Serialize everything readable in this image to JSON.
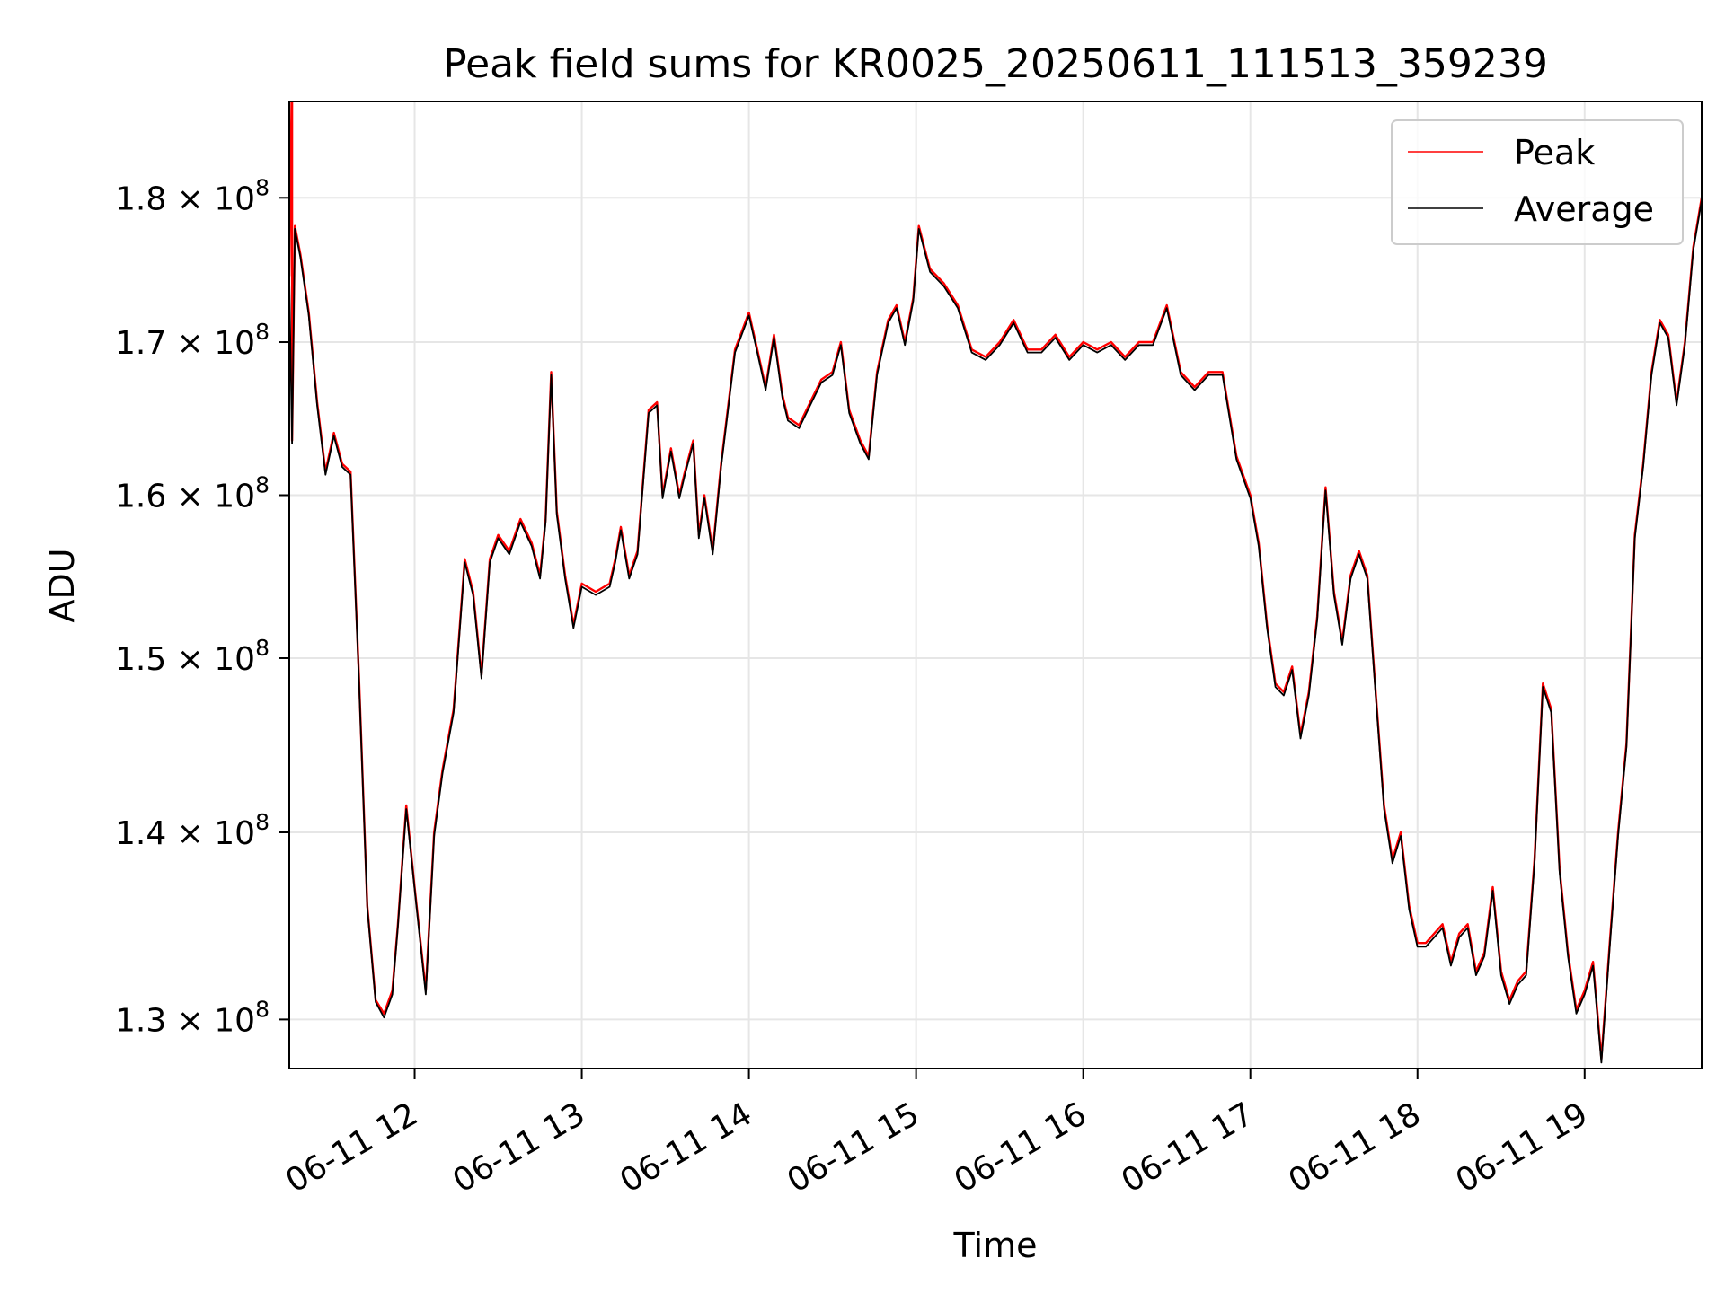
{
  "chart_data": {
    "type": "line",
    "title": "Peak field sums for KR0025_20250611_111513_359239",
    "xlabel": "Time",
    "ylabel": "ADU",
    "yscale": "log",
    "grid": true,
    "legend_position": "upper right",
    "x_ticks": [
      {
        "time": "2025-06-11 12:00",
        "label": "06-11 12"
      },
      {
        "time": "2025-06-11 13:00",
        "label": "06-11 13"
      },
      {
        "time": "2025-06-11 14:00",
        "label": "06-11 14"
      },
      {
        "time": "2025-06-11 15:00",
        "label": "06-11 15"
      },
      {
        "time": "2025-06-11 16:00",
        "label": "06-11 16"
      },
      {
        "time": "2025-06-11 17:00",
        "label": "06-11 17"
      },
      {
        "time": "2025-06-11 18:00",
        "label": "06-11 18"
      },
      {
        "time": "2025-06-11 19:00",
        "label": "06-11 19"
      }
    ],
    "y_ticks": [
      {
        "value": 130000000,
        "mantissa": "1.3"
      },
      {
        "value": 140000000,
        "mantissa": "1.4"
      },
      {
        "value": 150000000,
        "mantissa": "1.5"
      },
      {
        "value": 160000000,
        "mantissa": "1.6"
      },
      {
        "value": 170000000,
        "mantissa": "1.7"
      },
      {
        "value": 180000000,
        "mantissa": "1.8"
      }
    ],
    "y_tick_times": "×",
    "y_tick_base": "10",
    "y_tick_exponent": "8",
    "xlim": [
      "2025-06-11 11:15",
      "2025-06-11 19:42"
    ],
    "ylim": [
      127500000,
      187000000
    ],
    "series": [
      {
        "name": "Peak",
        "color": "#ff0000",
        "spike": {
          "time": "2025-06-11 11:16",
          "value": 190000000
        },
        "x": [
          "2025-06-11 11:15",
          "2025-06-11 11:16",
          "2025-06-11 11:17",
          "2025-06-11 11:19",
          "2025-06-11 11:22",
          "2025-06-11 11:25",
          "2025-06-11 11:28",
          "2025-06-11 11:31",
          "2025-06-11 11:34",
          "2025-06-11 11:37",
          "2025-06-11 11:40",
          "2025-06-11 11:43",
          "2025-06-11 11:46",
          "2025-06-11 11:49",
          "2025-06-11 11:52",
          "2025-06-11 11:54",
          "2025-06-11 11:57",
          "2025-06-11 12:00",
          "2025-06-11 12:04",
          "2025-06-11 12:07",
          "2025-06-11 12:10",
          "2025-06-11 12:14",
          "2025-06-11 12:18",
          "2025-06-11 12:21",
          "2025-06-11 12:24",
          "2025-06-11 12:27",
          "2025-06-11 12:30",
          "2025-06-11 12:34",
          "2025-06-11 12:38",
          "2025-06-11 12:42",
          "2025-06-11 12:45",
          "2025-06-11 12:47",
          "2025-06-11 12:49",
          "2025-06-11 12:51",
          "2025-06-11 12:54",
          "2025-06-11 12:57",
          "2025-06-11 13:00",
          "2025-06-11 13:05",
          "2025-06-11 13:10",
          "2025-06-11 13:12",
          "2025-06-11 13:14",
          "2025-06-11 13:17",
          "2025-06-11 13:20",
          "2025-06-11 13:24",
          "2025-06-11 13:27",
          "2025-06-11 13:29",
          "2025-06-11 13:32",
          "2025-06-11 13:35",
          "2025-06-11 13:37",
          "2025-06-11 13:40",
          "2025-06-11 13:42",
          "2025-06-11 13:44",
          "2025-06-11 13:47",
          "2025-06-11 13:50",
          "2025-06-11 13:55",
          "2025-06-11 14:00",
          "2025-06-11 14:03",
          "2025-06-11 14:06",
          "2025-06-11 14:09",
          "2025-06-11 14:12",
          "2025-06-11 14:14",
          "2025-06-11 14:18",
          "2025-06-11 14:22",
          "2025-06-11 14:26",
          "2025-06-11 14:30",
          "2025-06-11 14:33",
          "2025-06-11 14:36",
          "2025-06-11 14:40",
          "2025-06-11 14:43",
          "2025-06-11 14:46",
          "2025-06-11 14:50",
          "2025-06-11 14:53",
          "2025-06-11 14:56",
          "2025-06-11 14:59",
          "2025-06-11 15:01",
          "2025-06-11 15:05",
          "2025-06-11 15:10",
          "2025-06-11 15:15",
          "2025-06-11 15:20",
          "2025-06-11 15:25",
          "2025-06-11 15:30",
          "2025-06-11 15:35",
          "2025-06-11 15:40",
          "2025-06-11 15:45",
          "2025-06-11 15:50",
          "2025-06-11 15:55",
          "2025-06-11 16:00",
          "2025-06-11 16:05",
          "2025-06-11 16:10",
          "2025-06-11 16:15",
          "2025-06-11 16:20",
          "2025-06-11 16:25",
          "2025-06-11 16:30",
          "2025-06-11 16:35",
          "2025-06-11 16:40",
          "2025-06-11 16:45",
          "2025-06-11 16:50",
          "2025-06-11 16:55",
          "2025-06-11 17:00",
          "2025-06-11 17:03",
          "2025-06-11 17:06",
          "2025-06-11 17:09",
          "2025-06-11 17:12",
          "2025-06-11 17:15",
          "2025-06-11 17:18",
          "2025-06-11 17:21",
          "2025-06-11 17:24",
          "2025-06-11 17:27",
          "2025-06-11 17:30",
          "2025-06-11 17:33",
          "2025-06-11 17:36",
          "2025-06-11 17:39",
          "2025-06-11 17:42",
          "2025-06-11 17:45",
          "2025-06-11 17:48",
          "2025-06-11 17:51",
          "2025-06-11 17:54",
          "2025-06-11 17:57",
          "2025-06-11 18:00",
          "2025-06-11 18:03",
          "2025-06-11 18:06",
          "2025-06-11 18:09",
          "2025-06-11 18:12",
          "2025-06-11 18:15",
          "2025-06-11 18:18",
          "2025-06-11 18:21",
          "2025-06-11 18:24",
          "2025-06-11 18:27",
          "2025-06-11 18:30",
          "2025-06-11 18:33",
          "2025-06-11 18:36",
          "2025-06-11 18:39",
          "2025-06-11 18:42",
          "2025-06-11 18:45",
          "2025-06-11 18:48",
          "2025-06-11 18:51",
          "2025-06-11 18:54",
          "2025-06-11 18:57",
          "2025-06-11 19:00",
          "2025-06-11 19:03",
          "2025-06-11 19:06",
          "2025-06-11 19:09",
          "2025-06-11 19:12",
          "2025-06-11 19:15",
          "2025-06-11 19:18",
          "2025-06-11 19:21",
          "2025-06-11 19:24",
          "2025-06-11 19:27",
          "2025-06-11 19:30",
          "2025-06-11 19:33",
          "2025-06-11 19:36",
          "2025-06-11 19:39",
          "2025-06-11 19:42"
        ],
        "values": [
          174500000,
          163500000,
          178000000,
          176000000,
          172000000,
          166000000,
          161500000,
          164000000,
          162000000,
          161500000,
          149000000,
          136000000,
          131000000,
          130300000,
          131500000,
          135000000,
          141500000,
          137000000,
          131500000,
          140000000,
          143500000,
          147000000,
          156000000,
          154000000,
          149000000,
          156000000,
          157500000,
          156500000,
          158500000,
          157000000,
          155000000,
          158500000,
          168000000,
          159000000,
          155000000,
          152000000,
          154500000,
          154000000,
          154500000,
          156000000,
          158000000,
          155000000,
          156500000,
          165500000,
          166000000,
          160000000,
          163000000,
          160000000,
          161500000,
          163500000,
          157500000,
          160000000,
          156500000,
          162000000,
          169500000,
          172000000,
          169500000,
          167000000,
          170500000,
          166500000,
          165000000,
          164500000,
          166000000,
          167500000,
          168000000,
          170000000,
          165500000,
          163500000,
          162500000,
          168000000,
          171500000,
          172500000,
          170000000,
          173000000,
          178000000,
          175000000,
          174000000,
          172500000,
          169500000,
          169000000,
          170000000,
          171500000,
          169500000,
          169500000,
          170500000,
          169000000,
          170000000,
          169500000,
          170000000,
          169000000,
          170000000,
          170000000,
          172500000,
          168000000,
          167000000,
          168000000,
          168000000,
          162500000,
          160000000,
          157000000,
          152000000,
          148500000,
          148000000,
          149500000,
          145500000,
          148000000,
          152500000,
          160500000,
          154000000,
          151000000,
          155000000,
          156500000,
          155000000,
          148000000,
          141500000,
          138500000,
          140000000,
          136000000,
          134000000,
          134000000,
          134500000,
          135000000,
          133000000,
          134500000,
          135000000,
          132500000,
          133500000,
          137000000,
          132500000,
          131000000,
          132000000,
          132500000,
          138500000,
          148500000,
          147000000,
          138000000,
          133500000,
          130500000,
          131500000,
          133000000,
          128000000,
          134000000,
          140000000,
          145000000,
          157500000,
          162000000,
          168000000,
          171500000,
          170500000,
          166000000,
          170000000,
          176500000,
          180000000
        ]
      },
      {
        "name": "Average",
        "color": "#000000",
        "x": [
          "2025-06-11 11:15",
          "2025-06-11 11:16",
          "2025-06-11 11:17",
          "2025-06-11 11:19",
          "2025-06-11 11:22",
          "2025-06-11 11:25",
          "2025-06-11 11:28",
          "2025-06-11 11:31",
          "2025-06-11 11:34",
          "2025-06-11 11:37",
          "2025-06-11 11:40",
          "2025-06-11 11:43",
          "2025-06-11 11:46",
          "2025-06-11 11:49",
          "2025-06-11 11:52",
          "2025-06-11 11:54",
          "2025-06-11 11:57",
          "2025-06-11 12:00",
          "2025-06-11 12:04",
          "2025-06-11 12:07",
          "2025-06-11 12:10",
          "2025-06-11 12:14",
          "2025-06-11 12:18",
          "2025-06-11 12:21",
          "2025-06-11 12:24",
          "2025-06-11 12:27",
          "2025-06-11 12:30",
          "2025-06-11 12:34",
          "2025-06-11 12:38",
          "2025-06-11 12:42",
          "2025-06-11 12:45",
          "2025-06-11 12:47",
          "2025-06-11 12:49",
          "2025-06-11 12:51",
          "2025-06-11 12:54",
          "2025-06-11 12:57",
          "2025-06-11 13:00",
          "2025-06-11 13:05",
          "2025-06-11 13:10",
          "2025-06-11 13:12",
          "2025-06-11 13:14",
          "2025-06-11 13:17",
          "2025-06-11 13:20",
          "2025-06-11 13:24",
          "2025-06-11 13:27",
          "2025-06-11 13:29",
          "2025-06-11 13:32",
          "2025-06-11 13:35",
          "2025-06-11 13:37",
          "2025-06-11 13:40",
          "2025-06-11 13:42",
          "2025-06-11 13:44",
          "2025-06-11 13:47",
          "2025-06-11 13:50",
          "2025-06-11 13:55",
          "2025-06-11 14:00",
          "2025-06-11 14:03",
          "2025-06-11 14:06",
          "2025-06-11 14:09",
          "2025-06-11 14:12",
          "2025-06-11 14:14",
          "2025-06-11 14:18",
          "2025-06-11 14:22",
          "2025-06-11 14:26",
          "2025-06-11 14:30",
          "2025-06-11 14:33",
          "2025-06-11 14:36",
          "2025-06-11 14:40",
          "2025-06-11 14:43",
          "2025-06-11 14:46",
          "2025-06-11 14:50",
          "2025-06-11 14:53",
          "2025-06-11 14:56",
          "2025-06-11 14:59",
          "2025-06-11 15:01",
          "2025-06-11 15:05",
          "2025-06-11 15:10",
          "2025-06-11 15:15",
          "2025-06-11 15:20",
          "2025-06-11 15:25",
          "2025-06-11 15:30",
          "2025-06-11 15:35",
          "2025-06-11 15:40",
          "2025-06-11 15:45",
          "2025-06-11 15:50",
          "2025-06-11 15:55",
          "2025-06-11 16:00",
          "2025-06-11 16:05",
          "2025-06-11 16:10",
          "2025-06-11 16:15",
          "2025-06-11 16:20",
          "2025-06-11 16:25",
          "2025-06-11 16:30",
          "2025-06-11 16:35",
          "2025-06-11 16:40",
          "2025-06-11 16:45",
          "2025-06-11 16:50",
          "2025-06-11 16:55",
          "2025-06-11 17:00",
          "2025-06-11 17:03",
          "2025-06-11 17:06",
          "2025-06-11 17:09",
          "2025-06-11 17:12",
          "2025-06-11 17:15",
          "2025-06-11 17:18",
          "2025-06-11 17:21",
          "2025-06-11 17:24",
          "2025-06-11 17:27",
          "2025-06-11 17:30",
          "2025-06-11 17:33",
          "2025-06-11 17:36",
          "2025-06-11 17:39",
          "2025-06-11 17:42",
          "2025-06-11 17:45",
          "2025-06-11 17:48",
          "2025-06-11 17:51",
          "2025-06-11 17:54",
          "2025-06-11 17:57",
          "2025-06-11 18:00",
          "2025-06-11 18:03",
          "2025-06-11 18:06",
          "2025-06-11 18:09",
          "2025-06-11 18:12",
          "2025-06-11 18:15",
          "2025-06-11 18:18",
          "2025-06-11 18:21",
          "2025-06-11 18:24",
          "2025-06-11 18:27",
          "2025-06-11 18:30",
          "2025-06-11 18:33",
          "2025-06-11 18:36",
          "2025-06-11 18:39",
          "2025-06-11 18:42",
          "2025-06-11 18:45",
          "2025-06-11 18:48",
          "2025-06-11 18:51",
          "2025-06-11 18:54",
          "2025-06-11 18:57",
          "2025-06-11 19:00",
          "2025-06-11 19:03",
          "2025-06-11 19:06",
          "2025-06-11 19:09",
          "2025-06-11 19:12",
          "2025-06-11 19:15",
          "2025-06-11 19:18",
          "2025-06-11 19:21",
          "2025-06-11 19:24",
          "2025-06-11 19:27",
          "2025-06-11 19:30",
          "2025-06-11 19:33",
          "2025-06-11 19:36",
          "2025-06-11 19:39",
          "2025-06-11 19:42"
        ],
        "values": [
          174300000,
          163300000,
          177800000,
          175800000,
          171800000,
          165800000,
          161300000,
          163800000,
          161800000,
          161300000,
          148800000,
          135900000,
          130900000,
          130100000,
          131300000,
          134900000,
          141300000,
          136900000,
          131300000,
          139800000,
          143300000,
          146800000,
          155800000,
          153800000,
          148800000,
          155800000,
          157300000,
          156300000,
          158300000,
          156800000,
          154800000,
          158300000,
          167800000,
          158800000,
          154800000,
          151800000,
          154300000,
          153800000,
          154300000,
          155800000,
          157800000,
          154800000,
          156300000,
          165300000,
          165800000,
          159800000,
          162800000,
          159800000,
          161300000,
          163300000,
          157300000,
          159800000,
          156300000,
          161800000,
          169300000,
          171800000,
          169300000,
          166800000,
          170300000,
          166300000,
          164800000,
          164300000,
          165800000,
          167300000,
          167800000,
          169800000,
          165300000,
          163300000,
          162300000,
          167800000,
          171300000,
          172300000,
          169800000,
          172800000,
          177800000,
          174800000,
          173800000,
          172300000,
          169300000,
          168800000,
          169800000,
          171300000,
          169300000,
          169300000,
          170300000,
          168800000,
          169800000,
          169300000,
          169800000,
          168800000,
          169800000,
          169800000,
          172300000,
          167800000,
          166800000,
          167800000,
          167800000,
          162300000,
          159800000,
          156800000,
          151800000,
          148300000,
          147800000,
          149300000,
          145300000,
          147800000,
          152300000,
          160300000,
          153800000,
          150800000,
          154800000,
          156300000,
          154800000,
          147800000,
          141300000,
          138300000,
          139800000,
          135800000,
          133800000,
          133800000,
          134300000,
          134800000,
          132800000,
          134300000,
          134800000,
          132300000,
          133300000,
          136800000,
          132300000,
          130800000,
          131800000,
          132300000,
          138300000,
          148300000,
          146800000,
          137800000,
          133300000,
          130300000,
          131300000,
          132800000,
          127800000,
          133800000,
          139800000,
          144800000,
          157300000,
          161800000,
          167800000,
          171300000,
          170300000,
          165800000,
          169800000,
          176300000,
          179800000
        ]
      }
    ]
  }
}
